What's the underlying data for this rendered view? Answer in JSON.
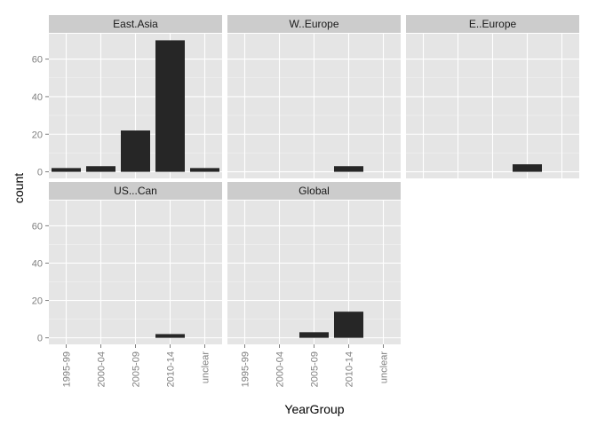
{
  "chart_data": {
    "type": "bar",
    "xlabel": "YearGroup",
    "ylabel": "count",
    "categories": [
      "1995-99",
      "2000-04",
      "2005-09",
      "2010-14",
      "unclear"
    ],
    "y_ticks": [
      0,
      20,
      40,
      60
    ],
    "ylim": [
      -3.5,
      73.5
    ],
    "grid": true,
    "colors": {
      "panel_background": "#e5e5e5",
      "strip_background": "#cccccc",
      "bar_fill": "#262626"
    },
    "panels": [
      {
        "name": "East.Asia",
        "values": [
          2,
          3,
          22,
          70,
          2
        ]
      },
      {
        "name": "W..Europe",
        "values": [
          0,
          0,
          0,
          3,
          0
        ]
      },
      {
        "name": "E..Europe",
        "values": [
          0,
          0,
          0,
          4,
          0
        ]
      },
      {
        "name": "US...Can",
        "values": [
          0,
          0,
          0,
          2,
          0
        ]
      },
      {
        "name": "Global",
        "values": [
          0,
          0,
          3,
          14,
          0
        ]
      }
    ]
  }
}
